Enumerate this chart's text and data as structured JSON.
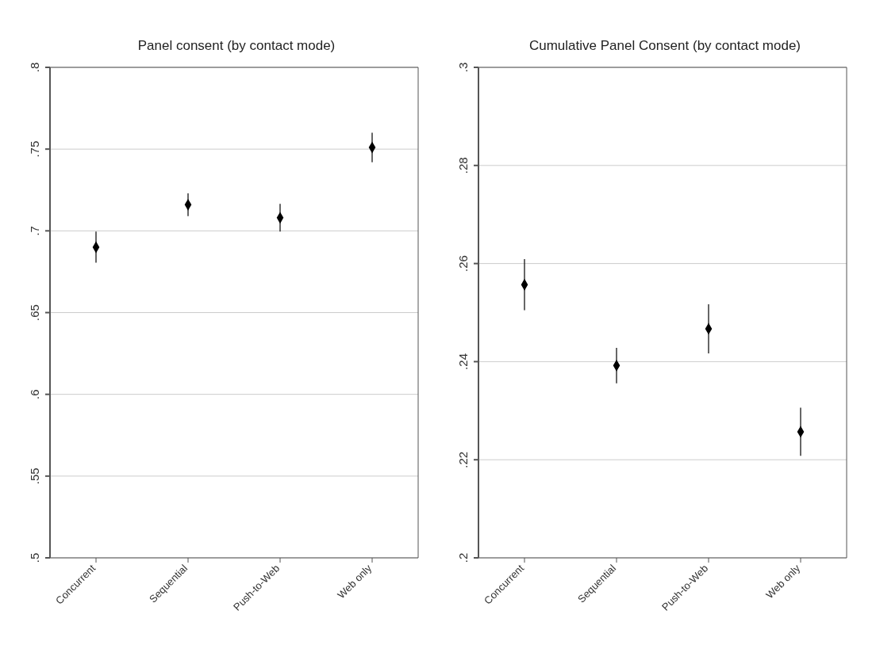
{
  "chart_data": [
    {
      "type": "scatter",
      "title": "Panel consent (by contact mode)",
      "categories": [
        "Concurrent",
        "Sequential",
        "Push-to-Web",
        "Web only"
      ],
      "values": [
        0.69,
        0.716,
        0.708,
        0.751
      ],
      "errors": [
        0.0095,
        0.007,
        0.0085,
        0.009
      ],
      "color": "#000000",
      "marker": "diamond",
      "grid": "y",
      "ylim": [
        0.5,
        0.8
      ],
      "yticks": [
        {
          "value": 0.5,
          "label": ".5"
        },
        {
          "value": 0.55,
          "label": ".55"
        },
        {
          "value": 0.6,
          "label": ".6"
        },
        {
          "value": 0.65,
          "label": ".65"
        },
        {
          "value": 0.7,
          "label": ".7"
        },
        {
          "value": 0.75,
          "label": ".75"
        },
        {
          "value": 0.8,
          "label": ".8"
        }
      ]
    },
    {
      "type": "scatter",
      "title": "Cumulative Panel Consent (by contact mode)",
      "categories": [
        "Concurrent",
        "Sequential",
        "Push-to-Web",
        "Web only"
      ],
      "values": [
        0.2557,
        0.2392,
        0.2467,
        0.2257
      ],
      "errors": [
        0.0052,
        0.0036,
        0.005,
        0.0049
      ],
      "color": "#000000",
      "marker": "diamond",
      "grid": "y",
      "ylim": [
        0.2,
        0.3
      ],
      "yticks": [
        {
          "value": 0.2,
          "label": ".2"
        },
        {
          "value": 0.22,
          "label": ".22"
        },
        {
          "value": 0.24,
          "label": ".24"
        },
        {
          "value": 0.26,
          "label": ".26"
        },
        {
          "value": 0.28,
          "label": ".28"
        },
        {
          "value": 0.3,
          "label": ".3"
        }
      ]
    }
  ]
}
